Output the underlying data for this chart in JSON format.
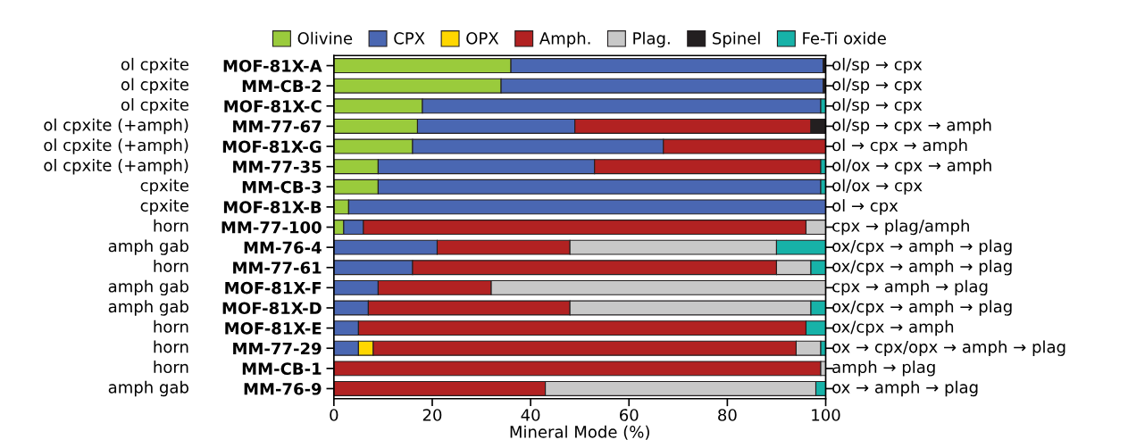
{
  "chart_data": {
    "type": "bar",
    "orientation": "horizontal",
    "stacked": true,
    "xlabel": "Mineral Mode (%)",
    "categories": [
      "MOF-81X-A",
      "MM-CB-2",
      "MOF-81X-C",
      "MM-77-67",
      "MOF-81X-G",
      "MM-77-35",
      "MM-CB-3",
      "MOF-81X-B",
      "MM-77-100",
      "MM-76-4",
      "MM-77-61",
      "MOF-81X-F",
      "MOF-81X-D",
      "MOF-81X-E",
      "MM-77-29",
      "MM-CB-1",
      "MM-76-9"
    ],
    "series": [
      {
        "name": "Olivine",
        "color": "#9acb3c",
        "values": [
          36,
          34,
          18,
          17,
          16,
          9,
          9,
          3,
          2,
          null,
          null,
          null,
          null,
          null,
          null,
          null,
          null
        ]
      },
      {
        "name": "CPX",
        "color": "#4a67b2",
        "values": [
          63.5,
          65.5,
          81,
          32,
          51,
          44,
          90,
          97,
          4,
          21,
          16,
          9,
          7,
          5,
          5,
          null,
          null
        ]
      },
      {
        "name": "OPX",
        "color": "#ffd700",
        "values": [
          null,
          null,
          null,
          null,
          null,
          null,
          null,
          null,
          null,
          null,
          null,
          null,
          null,
          null,
          3,
          null,
          null
        ]
      },
      {
        "name": "Amph.",
        "color": "#b22222",
        "values": [
          null,
          null,
          null,
          48,
          33,
          46,
          null,
          null,
          90,
          27,
          74,
          23,
          41,
          91,
          86,
          99,
          43
        ]
      },
      {
        "name": "Plag.",
        "color": "#c8c8c8",
        "values": [
          null,
          null,
          null,
          null,
          null,
          null,
          null,
          null,
          4,
          42,
          7,
          68,
          49,
          null,
          5,
          1,
          55
        ]
      },
      {
        "name": "Spinel",
        "color": "#231f20",
        "values": [
          0.5,
          0.5,
          null,
          3,
          null,
          null,
          null,
          null,
          null,
          null,
          null,
          null,
          null,
          null,
          null,
          null,
          null
        ]
      },
      {
        "name": "Fe-Ti oxide",
        "color": "#17b2a8",
        "values": [
          null,
          null,
          1,
          null,
          null,
          1,
          1,
          null,
          null,
          10,
          3,
          null,
          3,
          4,
          1,
          null,
          2
        ]
      }
    ],
    "xlim": [
      0,
      100
    ],
    "xticks": [
      0,
      20,
      40,
      60,
      80,
      100
    ],
    "legend": "top",
    "grid": false,
    "annotations": [
      "ol cpxite",
      "ol cpxite",
      "ol cpxite",
      "ol cpxite (+amph)",
      "ol cpxite (+amph)",
      "ol cpxite (+amph)",
      "cpxite",
      "cpxite",
      "horn",
      "amph gab",
      "horn",
      "amph gab",
      "amph gab",
      "horn",
      "horn",
      "horn",
      "amph gab",
      "ol/sp → cpx",
      "ol/sp → cpx",
      "ol/sp → cpx",
      "ol/sp → cpx → amph",
      "ol → cpx → amph",
      "ol/ox → cpx → amph",
      "ol/ox → cpx",
      "ol → cpx",
      "cpx → plag/amph",
      "ox/cpx → amph → plag",
      "ox/cpx → amph → plag",
      "cpx → amph → plag",
      "ox/cpx → amph → plag",
      "ox/cpx → amph",
      "ox → cpx/opx → amph → plag",
      "amph → plag",
      "ox → amph → plag"
    ]
  }
}
